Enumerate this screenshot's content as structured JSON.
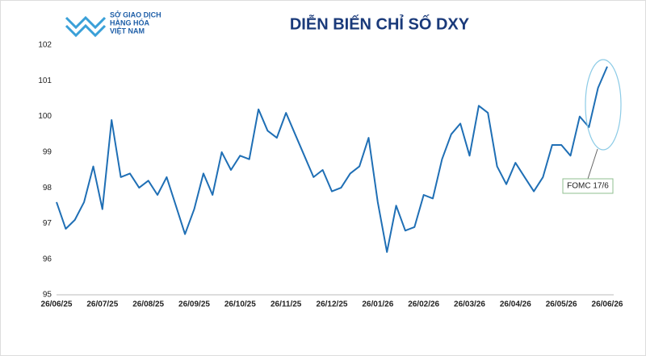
{
  "logo": [
    "SỞ GIAO DỊCH",
    "HÀNG HÓA",
    "VIỆT NAM"
  ],
  "chart_data": {
    "type": "line",
    "title": "DIỄN BIẾN CHỈ SỐ DXY",
    "categories": [
      "26/06/25",
      null,
      null,
      null,
      null,
      "26/07/25",
      null,
      null,
      null,
      null,
      "26/08/25",
      null,
      null,
      null,
      null,
      "26/09/25",
      null,
      null,
      null,
      null,
      "26/10/25",
      null,
      null,
      null,
      null,
      "26/11/25",
      null,
      null,
      null,
      null,
      "26/12/25",
      null,
      null,
      null,
      null,
      "26/01/26",
      null,
      null,
      null,
      null,
      "26/02/26",
      null,
      null,
      null,
      null,
      "26/03/26",
      null,
      null,
      null,
      null,
      "26/04/26",
      null,
      null,
      null,
      null,
      "26/05/26",
      null,
      null,
      null,
      null,
      "26/06/26"
    ],
    "series": [
      {
        "name": "DXY",
        "color": "#1f6fb5",
        "values": [
          97.6,
          96.85,
          97.1,
          97.6,
          98.6,
          97.4,
          99.9,
          98.3,
          98.4,
          98.0,
          98.2,
          97.8,
          98.3,
          97.5,
          96.7,
          97.4,
          98.4,
          97.8,
          99.0,
          98.5,
          98.9,
          98.8,
          100.2,
          99.6,
          99.4,
          100.1,
          99.5,
          98.9,
          98.3,
          98.5,
          97.9,
          98.0,
          98.4,
          98.6,
          99.4,
          97.6,
          96.2,
          97.5,
          96.8,
          96.9,
          97.8,
          97.7,
          98.8,
          99.5,
          99.8,
          98.9,
          100.3,
          100.1,
          98.6,
          98.1,
          98.7,
          98.3,
          97.9,
          98.3,
          99.2,
          99.2,
          98.9,
          100.0,
          99.7,
          100.8,
          101.4
        ]
      }
    ],
    "ylim": [
      95,
      102
    ],
    "yticks": [
      95,
      96,
      97,
      98,
      99,
      100,
      101,
      102
    ],
    "annotation": "FOMC 17/6"
  }
}
